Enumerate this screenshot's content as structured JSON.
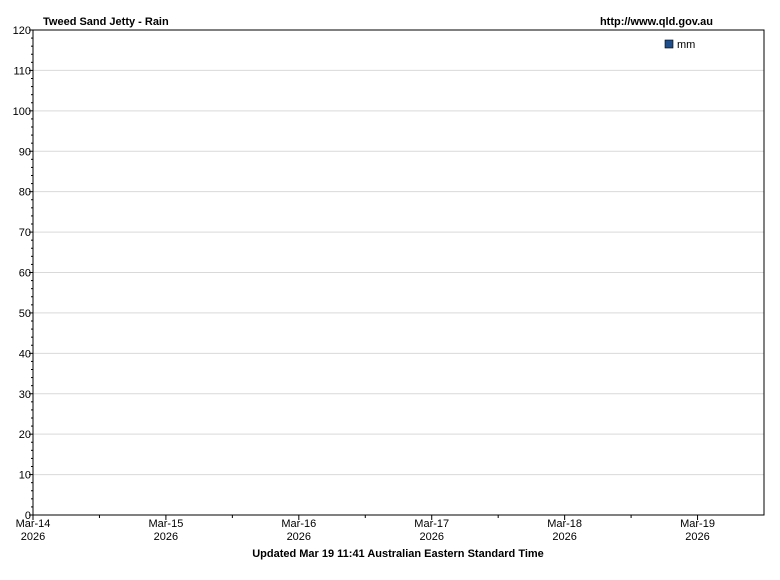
{
  "chart_data": {
    "type": "bar",
    "title": "Tweed Sand Jetty - Rain",
    "source": "http://www.qld.gov.au",
    "footer": "Updated Mar 19 11:41 Australian Eastern Standard Time",
    "ylim": [
      0,
      120
    ],
    "ytick_step": 10,
    "y_minor_step": 2,
    "x_ticks": [
      {
        "date": "2026-03-14",
        "label": "Mar-14",
        "year": "2026"
      },
      {
        "date": "2026-03-15",
        "label": "Mar-15",
        "year": "2026"
      },
      {
        "date": "2026-03-16",
        "label": "Mar-16",
        "year": "2026"
      },
      {
        "date": "2026-03-17",
        "label": "Mar-17",
        "year": "2026"
      },
      {
        "date": "2026-03-18",
        "label": "Mar-18",
        "year": "2026"
      },
      {
        "date": "2026-03-19",
        "label": "Mar-19",
        "year": "2026"
      }
    ],
    "xlim": [
      "2026-03-14",
      "2026-03-19T12:00"
    ],
    "legend": {
      "position": "top-right",
      "entries": [
        {
          "label": "mm",
          "color": "#1f4e8c"
        }
      ]
    },
    "series": [
      {
        "name": "mm",
        "color": "#1f4e8c",
        "values": []
      }
    ],
    "grid": true
  }
}
